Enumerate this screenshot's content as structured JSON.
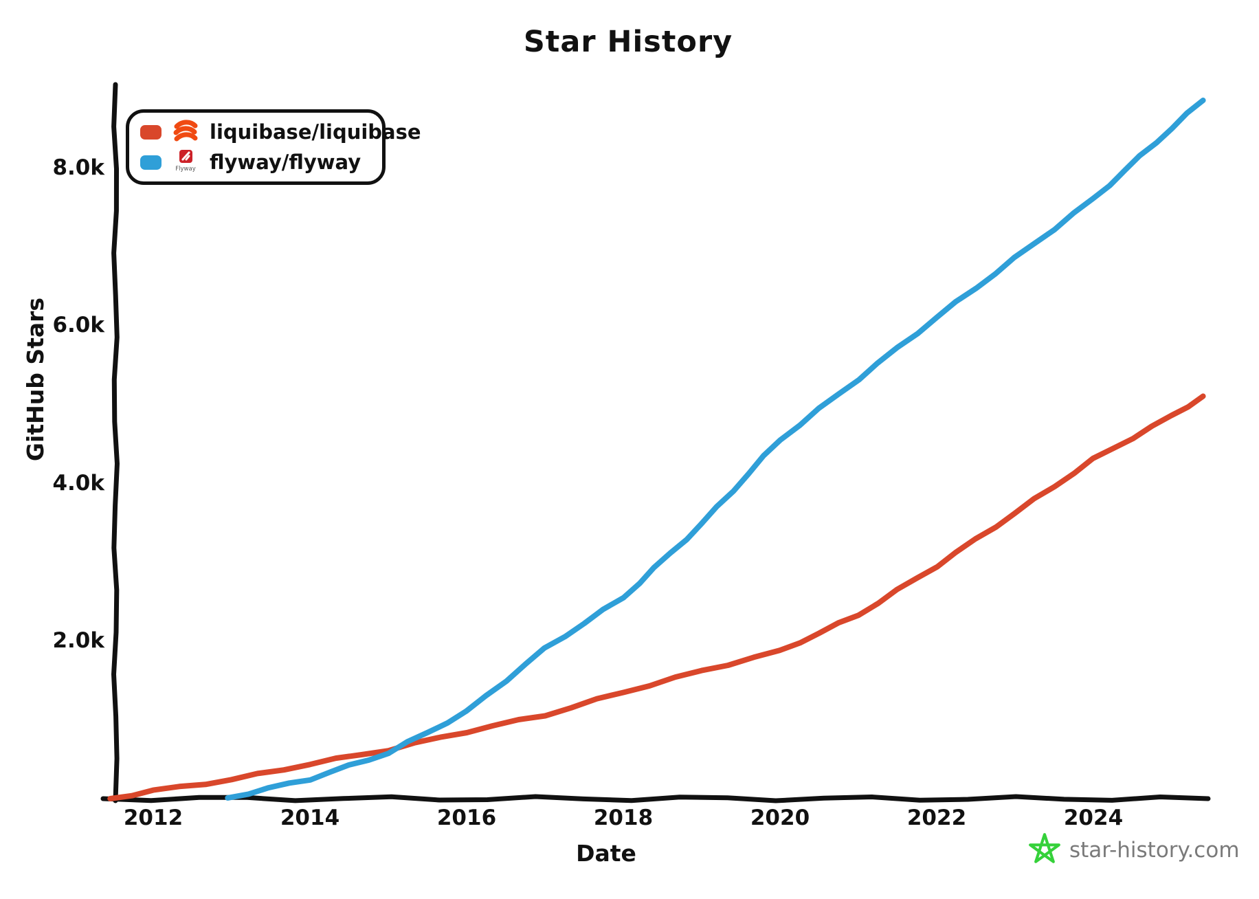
{
  "title": "Star History",
  "axes": {
    "x_label": "Date",
    "y_label": "GitHub Stars"
  },
  "legend": {
    "items": [
      {
        "label": "liquibase/liquibase",
        "color": "#d9472b",
        "icon": "liquibase-logo-icon",
        "logo_color": "#f04a12"
      },
      {
        "label": "flyway/flyway",
        "color": "#2f9fd8",
        "icon": "flyway-logo-icon",
        "logo_color": "#cc2128",
        "logo_text": "Flyway"
      }
    ]
  },
  "watermark": {
    "text": "star-history.com",
    "icon": "star-icon",
    "star_color": "#35d13a",
    "text_color": "#7a7a7a"
  },
  "chart_data": {
    "type": "line",
    "title": "Star History",
    "xlabel": "Date",
    "ylabel": "GitHub Stars",
    "xlim": [
      2011.3,
      2025.6
    ],
    "ylim": [
      0,
      9100
    ],
    "grid": false,
    "legend_position": "top-left",
    "x_ticks": [
      2012,
      2014,
      2016,
      2018,
      2020,
      2022,
      2024
    ],
    "y_ticks": [
      {
        "value": 2000,
        "label": "2.0k"
      },
      {
        "value": 4000,
        "label": "4.0k"
      },
      {
        "value": 6000,
        "label": "6.0k"
      },
      {
        "value": 8000,
        "label": "8.0k"
      }
    ],
    "series": [
      {
        "name": "liquibase/liquibase",
        "color": "#d9472b",
        "points": [
          [
            2011.45,
            0
          ],
          [
            2012,
            100
          ],
          [
            2013,
            240
          ],
          [
            2014,
            440
          ],
          [
            2015,
            620
          ],
          [
            2016,
            850
          ],
          [
            2017,
            1060
          ],
          [
            2018,
            1350
          ],
          [
            2019,
            1620
          ],
          [
            2020,
            1870
          ],
          [
            2021,
            2330
          ],
          [
            2022,
            2950
          ],
          [
            2023,
            3620
          ],
          [
            2024,
            4300
          ],
          [
            2025,
            4850
          ],
          [
            2025.4,
            5100
          ]
        ]
      },
      {
        "name": "flyway/flyway",
        "color": "#2f9fd8",
        "points": [
          [
            2012.95,
            10
          ],
          [
            2014,
            250
          ],
          [
            2015,
            580
          ],
          [
            2016,
            1100
          ],
          [
            2017,
            1900
          ],
          [
            2018,
            2550
          ],
          [
            2019,
            3480
          ],
          [
            2020,
            4550
          ],
          [
            2021,
            5320
          ],
          [
            2022,
            6100
          ],
          [
            2023,
            6850
          ],
          [
            2024,
            7600
          ],
          [
            2025,
            8500
          ],
          [
            2025.4,
            8850
          ]
        ]
      }
    ]
  }
}
